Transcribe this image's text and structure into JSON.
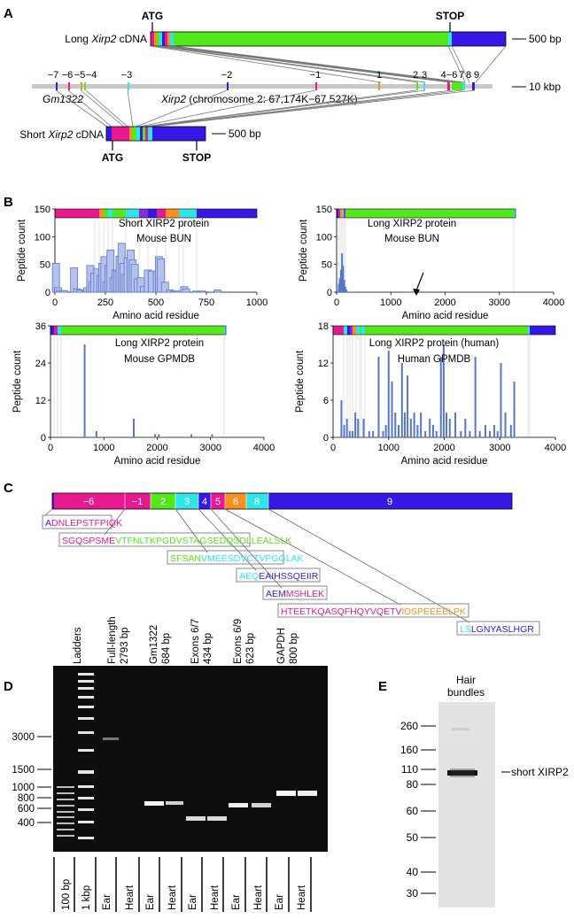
{
  "panels": {
    "a": "A",
    "b": "B",
    "c": "C",
    "d": "D",
    "e": "E"
  },
  "colors": {
    "magenta": "#e81890",
    "green": "#52e81a",
    "cyan": "#2ee6ea",
    "blue": "#3618e6",
    "orange": "#f6901e",
    "purple": "#8a2cd6",
    "bar": "#5677c8",
    "barfill": "#b7c1ee"
  },
  "panel_a": {
    "atg_top": "ATG",
    "stop_top": "STOP",
    "long_label_pre": "Long ",
    "long_label_gene": "Xirp2",
    "long_label_post": " cDNA",
    "scale_500_top": "500 bp",
    "exons": [
      "−7",
      "−6",
      "−5",
      "−4",
      "−3",
      "−2",
      "−1",
      "1",
      "2",
      "3",
      "4−6",
      "7",
      "8",
      "9"
    ],
    "scale_10k": "10 kbp",
    "gm": "Gm1322",
    "locus_gene": "Xirp2",
    "locus_rest": " (chromosome 2:  67,174K−67,527K)",
    "short_label_pre": "Short ",
    "short_label_gene": "Xirp2",
    "short_label_post": " cDNA",
    "scale_500_bottom": "500 bp",
    "atg_bottom": "ATG",
    "stop_bottom": "STOP"
  },
  "panel_b": [
    {
      "title1": "Short XIRP2 protein",
      "title2": "Mouse BUN",
      "ylabel": "Peptide count",
      "xlabel": "Amino acid residue",
      "yticks": [
        "0",
        "50",
        "100",
        "150"
      ],
      "xticks": [
        "0",
        "250",
        "500",
        "750",
        "1000"
      ]
    },
    {
      "title1": "Long XIRP2 protein",
      "title2": "Mouse BUN",
      "ylabel": "Peptide count",
      "xlabel": "Amino acid residue",
      "yticks": [
        "0",
        "50",
        "100",
        "150"
      ],
      "xticks": [
        "0",
        "1000",
        "2000",
        "3000",
        "4000"
      ]
    },
    {
      "title1": "Long XIRP2 protein",
      "title2": "Mouse GPMDB",
      "ylabel": "Peptide count",
      "xlabel": "Amino acid residue",
      "yticks": [
        "0",
        "12",
        "24",
        "36"
      ],
      "xticks": [
        "0",
        "1000",
        "2000",
        "3000",
        "4000"
      ]
    },
    {
      "title1": "Long XIRP2 protein (human)",
      "title2": "Human GPMDB",
      "ylabel": "Peptide count",
      "xlabel": "Amino acid residue",
      "yticks": [
        "0",
        "6",
        "12",
        "18"
      ],
      "xticks": [
        "0",
        "1000",
        "2000",
        "3000",
        "4000"
      ]
    }
  ],
  "panel_c": {
    "exons": [
      "−6",
      "−1",
      "2",
      "3",
      "4",
      "5",
      "6",
      "8",
      "9"
    ],
    "peptides": [
      {
        "a": "A",
        "b": "DNLEPSTFPIQK",
        "c": ""
      },
      {
        "a": "SGQSPSME",
        "b": "VTFNLTKPGDVSTAGSEDQSDLLEALSLK",
        "c": ""
      },
      {
        "a": "SFSAN",
        "b": "VMEESDVCTVPGGLAK",
        "c": ""
      },
      {
        "a": "AEQ",
        "b": "EAIHSSQEIIR",
        "c": ""
      },
      {
        "a": "AEM",
        "b": "MSHLEK",
        "c": ""
      },
      {
        "a": "HTEETKQASQFHQYVQETV",
        "b": "IDSPEEEELPK",
        "c": ""
      },
      {
        "a": "LS",
        "b": "LGNYASLHGR",
        "c": ""
      }
    ]
  },
  "panel_d": {
    "lanes": [
      {
        "top1": "Ladders",
        "top2": ""
      },
      {
        "top1": "Full-length",
        "top2": "2793 bp"
      },
      {
        "top1": "Gm1322",
        "top2": "684 bp"
      },
      {
        "top1": "Exons 6/7",
        "top2": "434 bp"
      },
      {
        "top1": "Exons 6/9",
        "top2": "623 bp"
      },
      {
        "top1": "GAPDH",
        "top2": "800 bp"
      }
    ],
    "bottom": [
      "100 bp",
      "1 kbp",
      "Ear",
      "Heart",
      "Ear",
      "Heart",
      "Ear",
      "Heart",
      "Ear",
      "Heart",
      "Ear",
      "Heart"
    ],
    "markers": [
      "3000",
      "1500",
      "1000",
      "800",
      "600",
      "400"
    ]
  },
  "panel_e": {
    "title1": "Hair",
    "title2": "bundles",
    "markers": [
      "260",
      "160",
      "110",
      "80",
      "60",
      "50",
      "40",
      "30"
    ],
    "band_label": "short XIRP2"
  },
  "chart_data": [
    {
      "type": "bar",
      "title": "Short XIRP2 protein",
      "subtitle": "Mouse BUN",
      "xlabel": "Amino acid residue",
      "ylabel": "Peptide count",
      "xlim": [
        0,
        1000
      ],
      "ylim": [
        0,
        150
      ],
      "x": [
        5,
        15,
        25,
        45,
        95,
        110,
        125,
        150,
        160,
        175,
        185,
        195,
        210,
        225,
        235,
        245,
        255,
        265,
        275,
        290,
        300,
        310,
        320,
        330,
        340,
        350,
        360,
        375,
        385,
        395,
        410,
        425,
        440,
        460,
        480,
        505,
        515,
        525,
        545,
        570,
        590,
        610,
        640,
        650,
        700,
        730,
        805
      ],
      "values": [
        52,
        8,
        3,
        3,
        44,
        6,
        4,
        3,
        8,
        48,
        18,
        34,
        42,
        30,
        52,
        64,
        18,
        48,
        76,
        26,
        40,
        38,
        65,
        88,
        52,
        32,
        62,
        76,
        58,
        50,
        24,
        26,
        10,
        40,
        38,
        38,
        64,
        60,
        18,
        4,
        2,
        2,
        10,
        6,
        2,
        2,
        4
      ]
    },
    {
      "type": "bar",
      "title": "Long XIRP2 protein",
      "subtitle": "Mouse BUN",
      "xlabel": "Amino acid residue",
      "ylabel": "Peptide count",
      "xlim": [
        0,
        4000
      ],
      "ylim": [
        0,
        150
      ],
      "x": [
        40,
        60,
        80,
        100,
        120,
        140,
        160,
        180,
        1300
      ],
      "values": [
        15,
        25,
        40,
        70,
        48,
        22,
        10,
        5,
        1
      ]
    },
    {
      "type": "bar",
      "title": "Long XIRP2 protein",
      "subtitle": "Mouse GPMDB",
      "xlabel": "Amino acid residue",
      "ylabel": "Peptide count",
      "xlim": [
        0,
        4000
      ],
      "ylim": [
        0,
        36
      ],
      "x": [
        640,
        860,
        1560,
        1960,
        2030,
        2640,
        3030
      ],
      "values": [
        30,
        2,
        6,
        1,
        1,
        1,
        1
      ]
    },
    {
      "type": "bar",
      "title": "Long XIRP2 protein (human)",
      "subtitle": "Human GPMDB",
      "xlabel": "Amino acid residue",
      "ylabel": "Peptide count",
      "xlim": [
        0,
        4000
      ],
      "ylim": [
        0,
        18
      ],
      "x": [
        150,
        200,
        250,
        300,
        350,
        400,
        450,
        550,
        650,
        720,
        820,
        900,
        950,
        1000,
        1060,
        1120,
        1180,
        1240,
        1290,
        1340,
        1400,
        1460,
        1520,
        1580,
        1660,
        1740,
        1800,
        1860,
        1940,
        1990,
        2040,
        2100,
        2200,
        2300,
        2380,
        2460,
        2560,
        2640,
        2740,
        2820,
        2900,
        2960,
        3020,
        3100,
        3200,
        3260
      ],
      "values": [
        6,
        2,
        3,
        1,
        1,
        4,
        3,
        3,
        1,
        1,
        13,
        1,
        2,
        14,
        9,
        4,
        2,
        12,
        4,
        10,
        3,
        4,
        2,
        4,
        1,
        3,
        2,
        1,
        13,
        15,
        4,
        3,
        4,
        1,
        3,
        1,
        13,
        1,
        2,
        1,
        2,
        1,
        12,
        4,
        2,
        9
      ]
    }
  ]
}
